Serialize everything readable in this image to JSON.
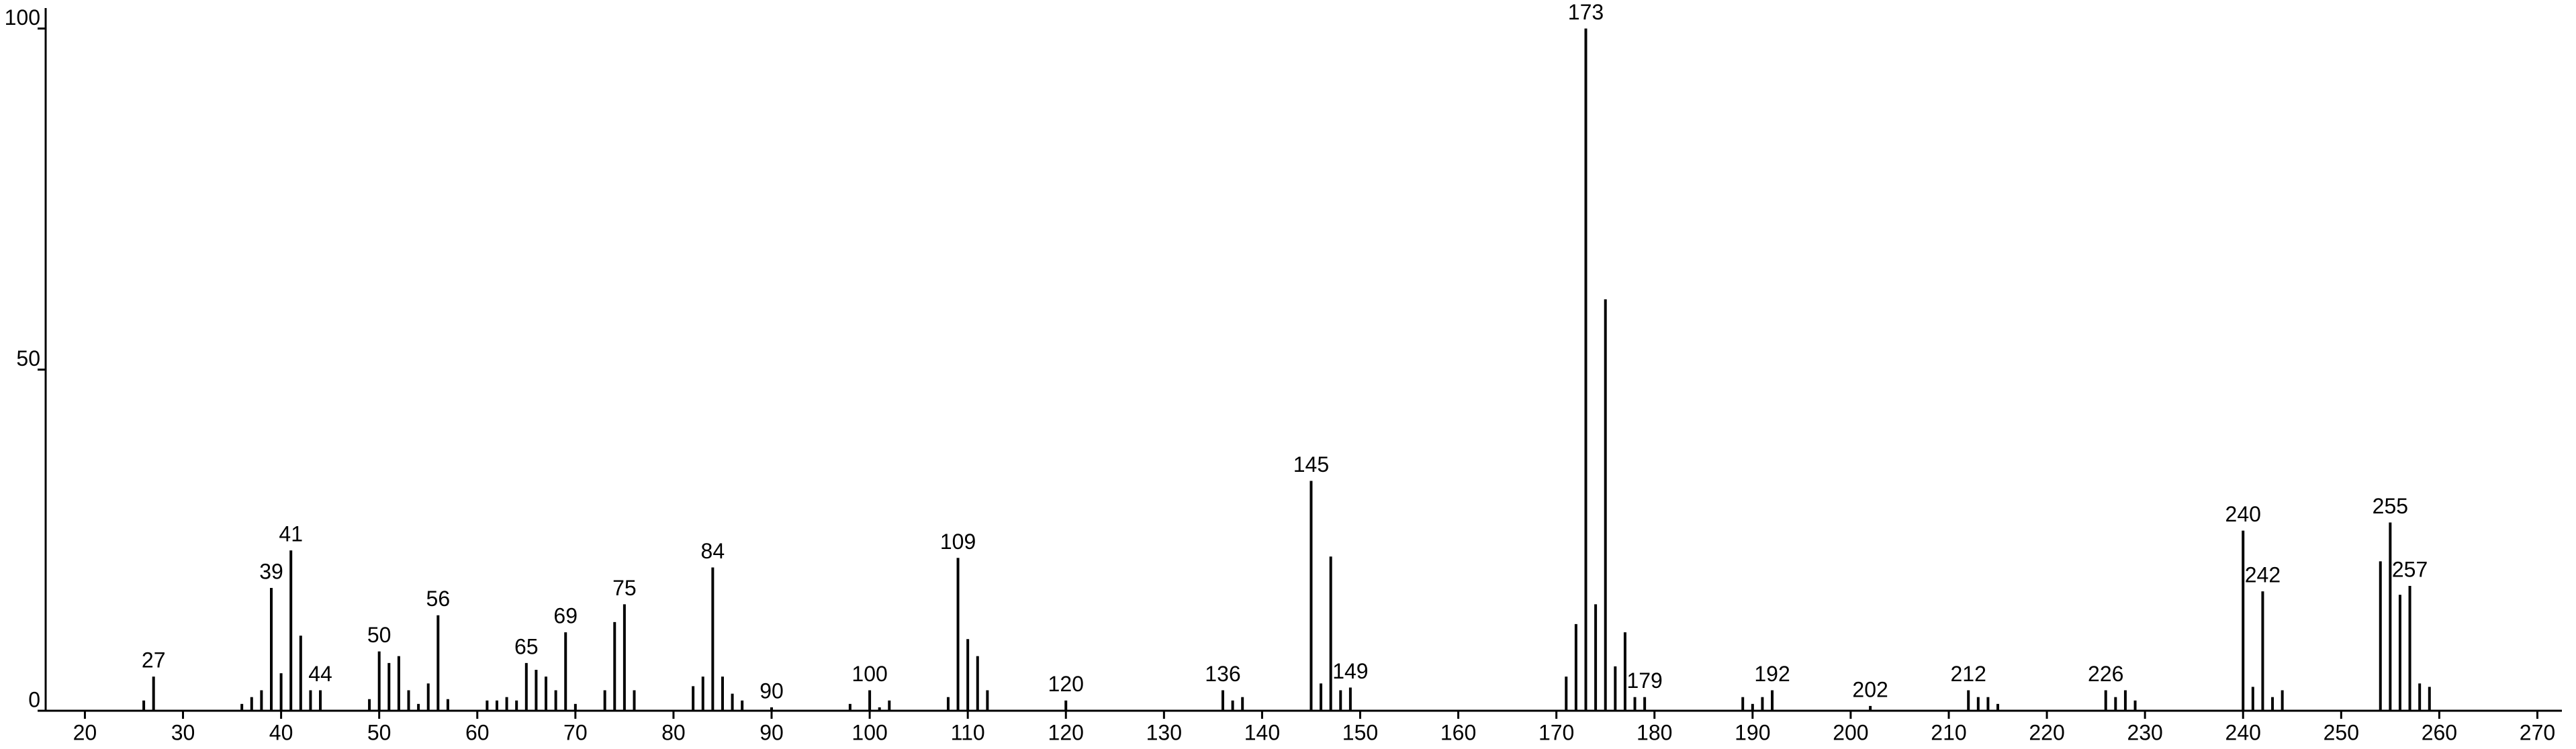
{
  "chart_data": {
    "type": "stick",
    "x": [
      26,
      27,
      36,
      37,
      38,
      39,
      40,
      41,
      42,
      43,
      44,
      49,
      50,
      51,
      52,
      53,
      54,
      55,
      56,
      57,
      61,
      62,
      63,
      64,
      65,
      66,
      67,
      68,
      69,
      70,
      73,
      74,
      75,
      76,
      82,
      83,
      84,
      85,
      86,
      87,
      90,
      98,
      100,
      101,
      102,
      108,
      109,
      110,
      111,
      112,
      120,
      136,
      137,
      138,
      145,
      146,
      147,
      148,
      149,
      171,
      172,
      173,
      174,
      175,
      176,
      177,
      178,
      179,
      189,
      190,
      191,
      192,
      202,
      212,
      213,
      214,
      215,
      226,
      227,
      228,
      229,
      240,
      241,
      242,
      243,
      244,
      254,
      255,
      256,
      257,
      258,
      259
    ],
    "values": [
      1.5,
      5,
      1,
      2,
      3,
      18,
      5.5,
      23.5,
      11,
      3,
      3,
      1.7,
      8.7,
      7,
      8,
      3,
      1,
      4,
      14,
      1.7,
      1.5,
      1.5,
      2,
      1.5,
      7,
      6,
      5,
      3,
      11.5,
      1,
      3,
      13,
      15.6,
      3,
      3.6,
      5,
      21,
      5,
      2.5,
      1.5,
      0.5,
      1,
      3,
      0.5,
      1.5,
      2,
      22.4,
      10.5,
      8,
      3,
      1.5,
      3,
      1.5,
      2,
      33.7,
      4,
      22.6,
      3,
      3.4,
      5,
      12.7,
      100,
      15.6,
      60.3,
      6.5,
      11.5,
      2,
      2,
      2,
      1,
      2,
      3,
      0.7,
      3,
      2,
      2,
      1,
      3,
      2,
      3,
      1.5,
      26.4,
      3.5,
      17.5,
      2,
      3,
      21.9,
      27.6,
      17,
      18.3,
      4,
      3.5
    ],
    "x_labels": [
      null,
      "27",
      null,
      null,
      null,
      "39",
      null,
      "41",
      null,
      null,
      "44",
      null,
      "50",
      null,
      null,
      null,
      null,
      null,
      "56",
      null,
      null,
      null,
      null,
      null,
      "65",
      null,
      null,
      null,
      "69",
      null,
      null,
      null,
      "75",
      null,
      null,
      null,
      "84",
      null,
      null,
      null,
      "90",
      null,
      "100",
      null,
      null,
      null,
      "109",
      null,
      null,
      null,
      "120",
      "136",
      null,
      null,
      "145",
      null,
      null,
      null,
      "149",
      null,
      null,
      "173",
      null,
      null,
      null,
      null,
      null,
      "179",
      null,
      null,
      null,
      "192",
      "202",
      "212",
      null,
      null,
      null,
      "226",
      null,
      null,
      null,
      "240",
      null,
      "242",
      null,
      null,
      null,
      "255",
      null,
      "257",
      null,
      null
    ],
    "color": "#000000",
    "xlim": [
      16,
      272.5
    ],
    "xticks": [
      20,
      30,
      40,
      50,
      60,
      70,
      80,
      90,
      100,
      110,
      120,
      130,
      140,
      150,
      160,
      170,
      180,
      190,
      200,
      210,
      220,
      230,
      240,
      250,
      260,
      270
    ],
    "ylim": [
      0,
      103
    ],
    "yticks": [
      0,
      50,
      100
    ]
  }
}
